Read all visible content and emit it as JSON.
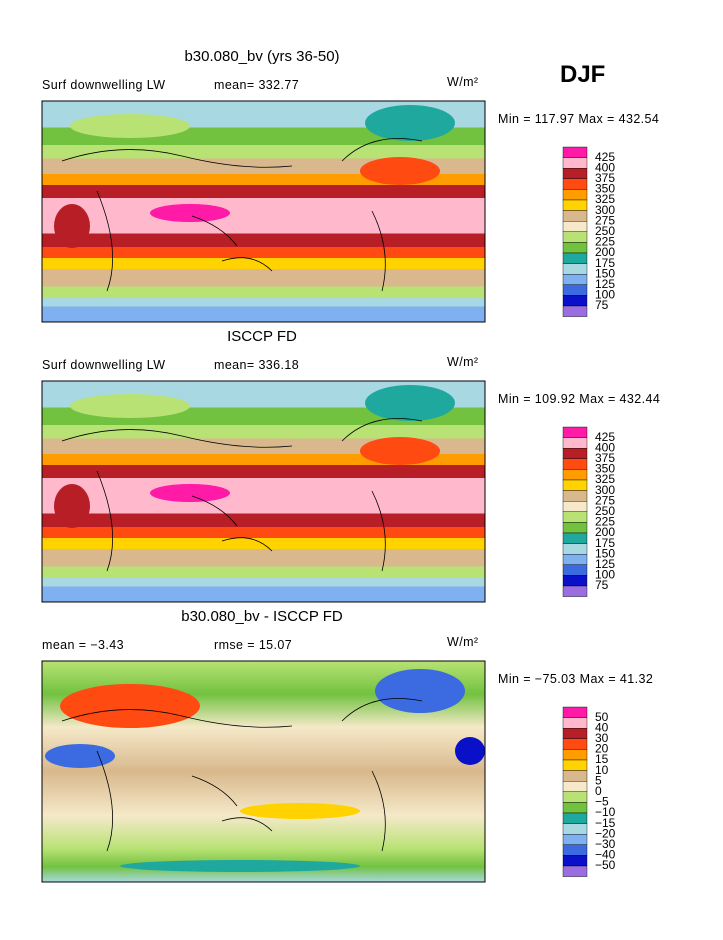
{
  "season": "DJF",
  "panels": [
    {
      "title": "b30.080_bv (yrs 36-50)",
      "left_label": "Surf downwelling LW",
      "center_label": "mean= 332.77",
      "units": "W/m²",
      "range": "Min = 117.97 Max = 432.54",
      "colorbar": {
        "labels": [
          "425",
          "400",
          "375",
          "350",
          "325",
          "300",
          "275",
          "250",
          "225",
          "200",
          "175",
          "150",
          "125",
          "100",
          "75"
        ],
        "colors": [
          "#ff1aa8",
          "#ffb8cc",
          "#b81e26",
          "#ff4a12",
          "#ff9c00",
          "#ffd200",
          "#d8b88c",
          "#f5e9c9",
          "#b8e274",
          "#72c240",
          "#1ea89e",
          "#a8d8e2",
          "#7fb0f0",
          "#3c6ae0",
          "#0a10c8",
          "#9a6ee0"
        ]
      }
    },
    {
      "title": "ISCCP FD",
      "left_label": "Surf downwelling LW",
      "center_label": "mean= 336.18",
      "units": "W/m²",
      "range": "Min = 109.92 Max = 432.44",
      "colorbar": {
        "labels": [
          "425",
          "400",
          "375",
          "350",
          "325",
          "300",
          "275",
          "250",
          "225",
          "200",
          "175",
          "150",
          "125",
          "100",
          "75"
        ],
        "colors": [
          "#ff1aa8",
          "#ffb8cc",
          "#b81e26",
          "#ff4a12",
          "#ff9c00",
          "#ffd200",
          "#d8b88c",
          "#f5e9c9",
          "#b8e274",
          "#72c240",
          "#1ea89e",
          "#a8d8e2",
          "#7fb0f0",
          "#3c6ae0",
          "#0a10c8",
          "#9a6ee0"
        ]
      }
    },
    {
      "title": "b30.080_bv - ISCCP FD",
      "left_label": "mean =   −3.43",
      "center_label": "rmse =   15.07",
      "units": "W/m²",
      "range": "Min = −75.03 Max =   41.32",
      "colorbar": {
        "labels": [
          "50",
          "40",
          "30",
          "20",
          "15",
          "10",
          "5",
          "0",
          "−5",
          "−10",
          "−15",
          "−20",
          "−30",
          "−40",
          "−50"
        ],
        "colors": [
          "#ff1aa8",
          "#ffb8cc",
          "#b81e26",
          "#ff4a12",
          "#ff9c00",
          "#ffd200",
          "#d8b88c",
          "#f5e9c9",
          "#b8e274",
          "#72c240",
          "#1ea89e",
          "#a8d8e2",
          "#7fb0f0",
          "#3c6ae0",
          "#0a10c8",
          "#9a6ee0"
        ]
      }
    }
  ]
}
